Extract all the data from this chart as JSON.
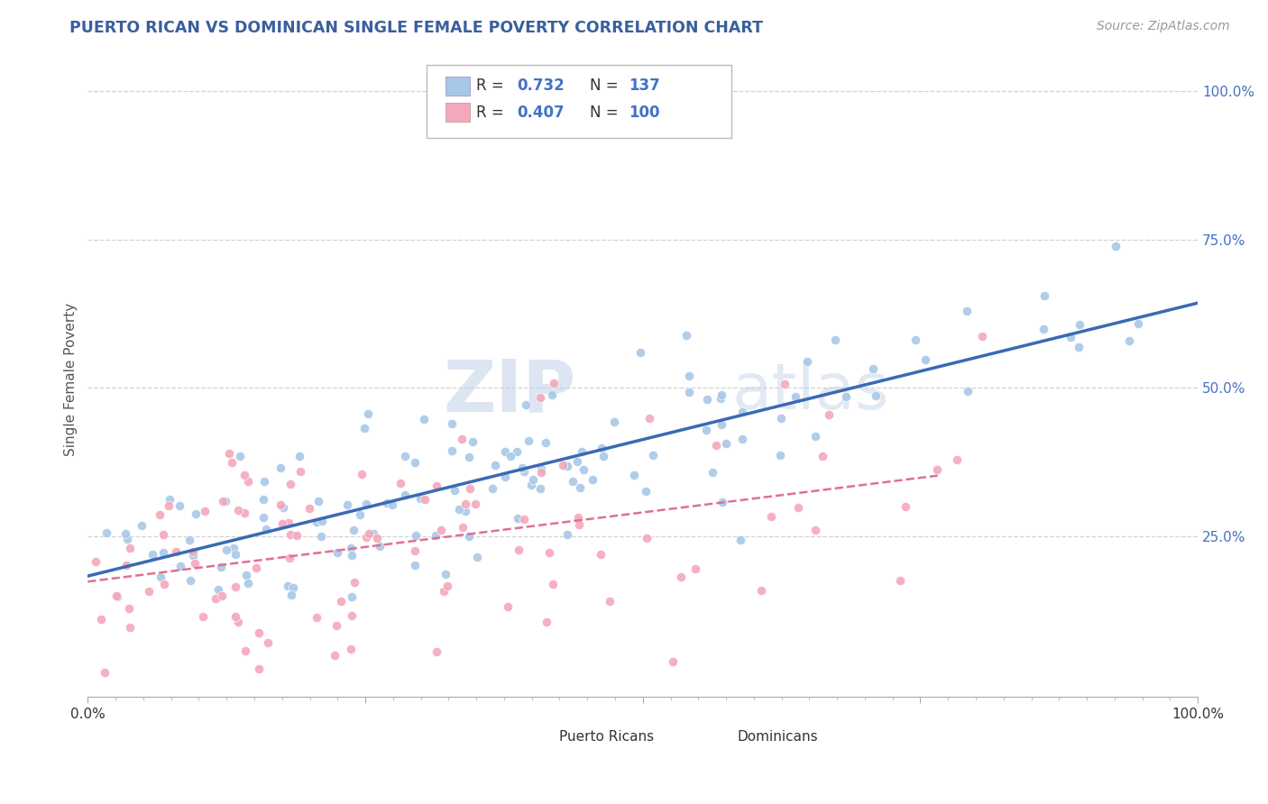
{
  "title": "PUERTO RICAN VS DOMINICAN SINGLE FEMALE POVERTY CORRELATION CHART",
  "source": "Source: ZipAtlas.com",
  "ylabel": "Single Female Poverty",
  "xlabel": "",
  "xlim": [
    0,
    1
  ],
  "ylim": [
    -0.02,
    1.05
  ],
  "xticks": [
    0,
    0.25,
    0.5,
    0.75,
    1.0
  ],
  "xtick_labels": [
    "0.0%",
    "",
    "",
    "",
    "100.0%"
  ],
  "yticks": [
    0.25,
    0.5,
    0.75,
    1.0
  ],
  "ytick_labels": [
    "25.0%",
    "50.0%",
    "75.0%",
    "100.0%"
  ],
  "pr_color": "#a8c8e8",
  "dom_color": "#f4a8bc",
  "pr_line_color": "#3a6ab5",
  "dom_line_color": "#e07090",
  "pr_R": 0.732,
  "pr_N": 137,
  "dom_R": 0.407,
  "dom_N": 100,
  "watermark": "ZIPatlas",
  "pr_label": "Puerto Ricans",
  "dom_label": "Dominicans",
  "title_color": "#3a5f9f",
  "stat_color": "#4472c4",
  "background_color": "#ffffff",
  "grid_color": "#cccccc",
  "pr_seed": 42,
  "dom_seed": 99
}
